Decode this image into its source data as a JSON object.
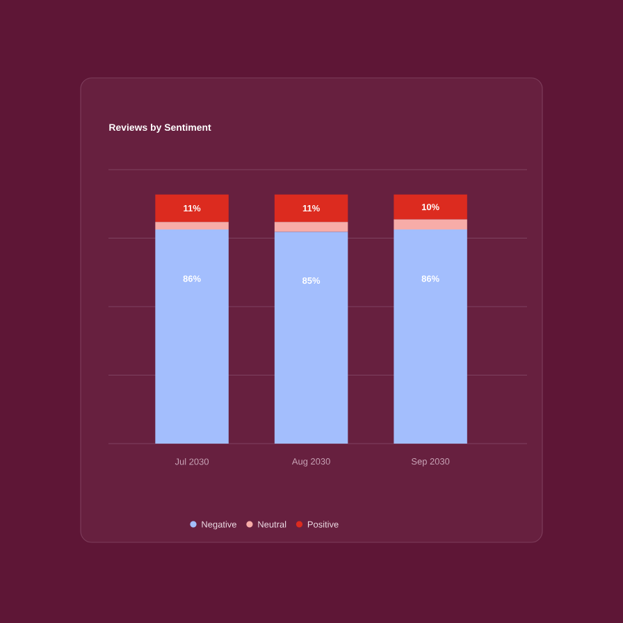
{
  "chart_data": {
    "type": "bar",
    "title": "Reviews by Sentiment",
    "categories": [
      "Jul 2030",
      "Aug 2030",
      "Sep 2030"
    ],
    "stacked": true,
    "series": [
      {
        "name": "Negative",
        "color": "#a3befd",
        "values": [
          86,
          85,
          86
        ],
        "value_labels": [
          "86%",
          "85%",
          "86%"
        ]
      },
      {
        "name": "Neutral",
        "color": "#f7aca8",
        "values": [
          3,
          4,
          4
        ]
      },
      {
        "name": "Positive",
        "color": "#dc2b1f",
        "values": [
          11,
          11,
          10
        ],
        "value_labels": [
          "11%",
          "11%",
          "10%"
        ]
      }
    ],
    "ylim": [
      0,
      110
    ],
    "yticks": [
      {
        "value": 0,
        "label": null
      },
      {
        "value": 27.5,
        "label": null
      },
      {
        "value": 55,
        "label": null
      },
      {
        "value": 82.5,
        "label": null
      },
      {
        "value": 110,
        "label": null
      }
    ],
    "grid": "y",
    "legend": "bottom",
    "tick_labels": "x"
  }
}
